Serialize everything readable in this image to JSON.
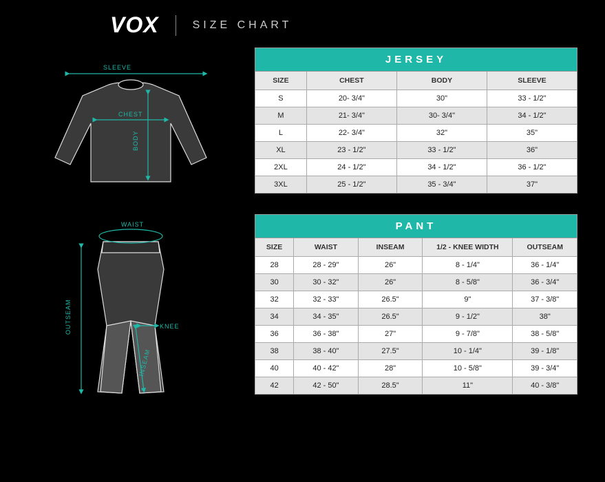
{
  "colors": {
    "background": "#000000",
    "accent": "#1fb8a8",
    "table_bg": "#ffffff",
    "row_alt": "#e4e4e4",
    "header_bg": "#e8e8e8",
    "border": "#aaaaaa",
    "text_light": "#ffffff",
    "text_dark": "#222222",
    "title_text": "#cccccc"
  },
  "typography": {
    "logo_fontsize": 32,
    "title_fontsize": 16,
    "title_letterspacing": 5,
    "section_title_fontsize": 15,
    "section_title_letterspacing": 5,
    "col_header_fontsize": 10.5,
    "cell_fontsize": 11
  },
  "header": {
    "logo": "VOX",
    "title": "SIZE CHART"
  },
  "jersey": {
    "type": "table",
    "title": "JERSEY",
    "columns": [
      "SIZE",
      "CHEST",
      "BODY",
      "SLEEVE"
    ],
    "col_widths": [
      "16%",
      "28%",
      "28%",
      "28%"
    ],
    "rows": [
      [
        "S",
        "20- 3/4\"",
        "30\"",
        "33 - 1/2\""
      ],
      [
        "M",
        "21- 3/4\"",
        "30- 3/4\"",
        "34 - 1/2\""
      ],
      [
        "L",
        "22- 3/4\"",
        "32\"",
        "35\""
      ],
      [
        "XL",
        "23 - 1/2\"",
        "33 - 1/2\"",
        "36\""
      ],
      [
        "2XL",
        "24 - 1/2\"",
        "34 - 1/2\"",
        "36 - 1/2\""
      ],
      [
        "3XL",
        "25 - 1/2\"",
        "35 - 3/4\"",
        "37\""
      ]
    ],
    "diagram_labels": {
      "sleeve": "SLEEVE",
      "chest": "CHEST",
      "body": "BODY"
    }
  },
  "pant": {
    "type": "table",
    "title": "PANT",
    "columns": [
      "SIZE",
      "WAIST",
      "INSEAM",
      "1/2 - KNEE WIDTH",
      "OUTSEAM"
    ],
    "col_widths": [
      "12%",
      "20%",
      "20%",
      "28%",
      "20%"
    ],
    "rows": [
      [
        "28",
        "28 - 29\"",
        "26\"",
        "8 - 1/4\"",
        "36 - 1/4\""
      ],
      [
        "30",
        "30 - 32\"",
        "26\"",
        "8 - 5/8\"",
        "36 - 3/4\""
      ],
      [
        "32",
        "32 - 33\"",
        "26.5\"",
        "9\"",
        "37 - 3/8\""
      ],
      [
        "34",
        "34 - 35\"",
        "26.5\"",
        "9 - 1/2\"",
        "38\""
      ],
      [
        "36",
        "36 - 38\"",
        "27\"",
        "9 - 7/8\"",
        "38 - 5/8\""
      ],
      [
        "38",
        "38 - 40\"",
        "27.5\"",
        "10 - 1/4\"",
        "39 - 1/8\""
      ],
      [
        "40",
        "40 - 42\"",
        "28\"",
        "10 - 5/8\"",
        "39 - 3/4\""
      ],
      [
        "42",
        "42 - 50\"",
        "28.5\"",
        "11\"",
        "40 - 3/8\""
      ]
    ],
    "diagram_labels": {
      "waist": "WAIST",
      "outseam": "OUTSEAM",
      "inseam": "INSEAM",
      "knee": "KNEE"
    }
  }
}
